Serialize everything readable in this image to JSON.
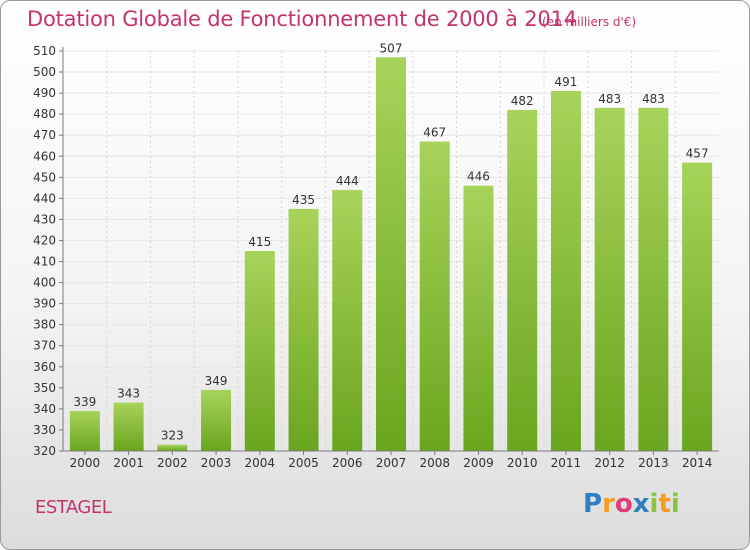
{
  "header": {
    "title": "Dotation Globale de Fonctionnement de 2000 à 2014",
    "unit": "(en milliers d'€)"
  },
  "footer": {
    "commune": "ESTAGEL",
    "logo": "Proxiti"
  },
  "colors": {
    "title": "#c4336e",
    "bar_light": "#a8d35a",
    "bar_dark": "#6aa51f",
    "grid": "#e6e6e6",
    "axis": "#7a7a7a"
  },
  "chart_data": {
    "type": "bar",
    "title": "Dotation Globale de Fonctionnement de 2000 à 2014",
    "subtitle": "(en milliers d'€)",
    "xlabel": "",
    "ylabel": "",
    "categories": [
      "2000",
      "2001",
      "2002",
      "2003",
      "2004",
      "2005",
      "2006",
      "2007",
      "2008",
      "2009",
      "2010",
      "2011",
      "2012",
      "2013",
      "2014"
    ],
    "values": [
      339,
      343,
      323,
      349,
      415,
      435,
      444,
      507,
      467,
      446,
      482,
      491,
      483,
      483,
      457
    ],
    "ylim": [
      320,
      510
    ],
    "ytick_step": 10,
    "grid": true,
    "data_labels": true
  }
}
